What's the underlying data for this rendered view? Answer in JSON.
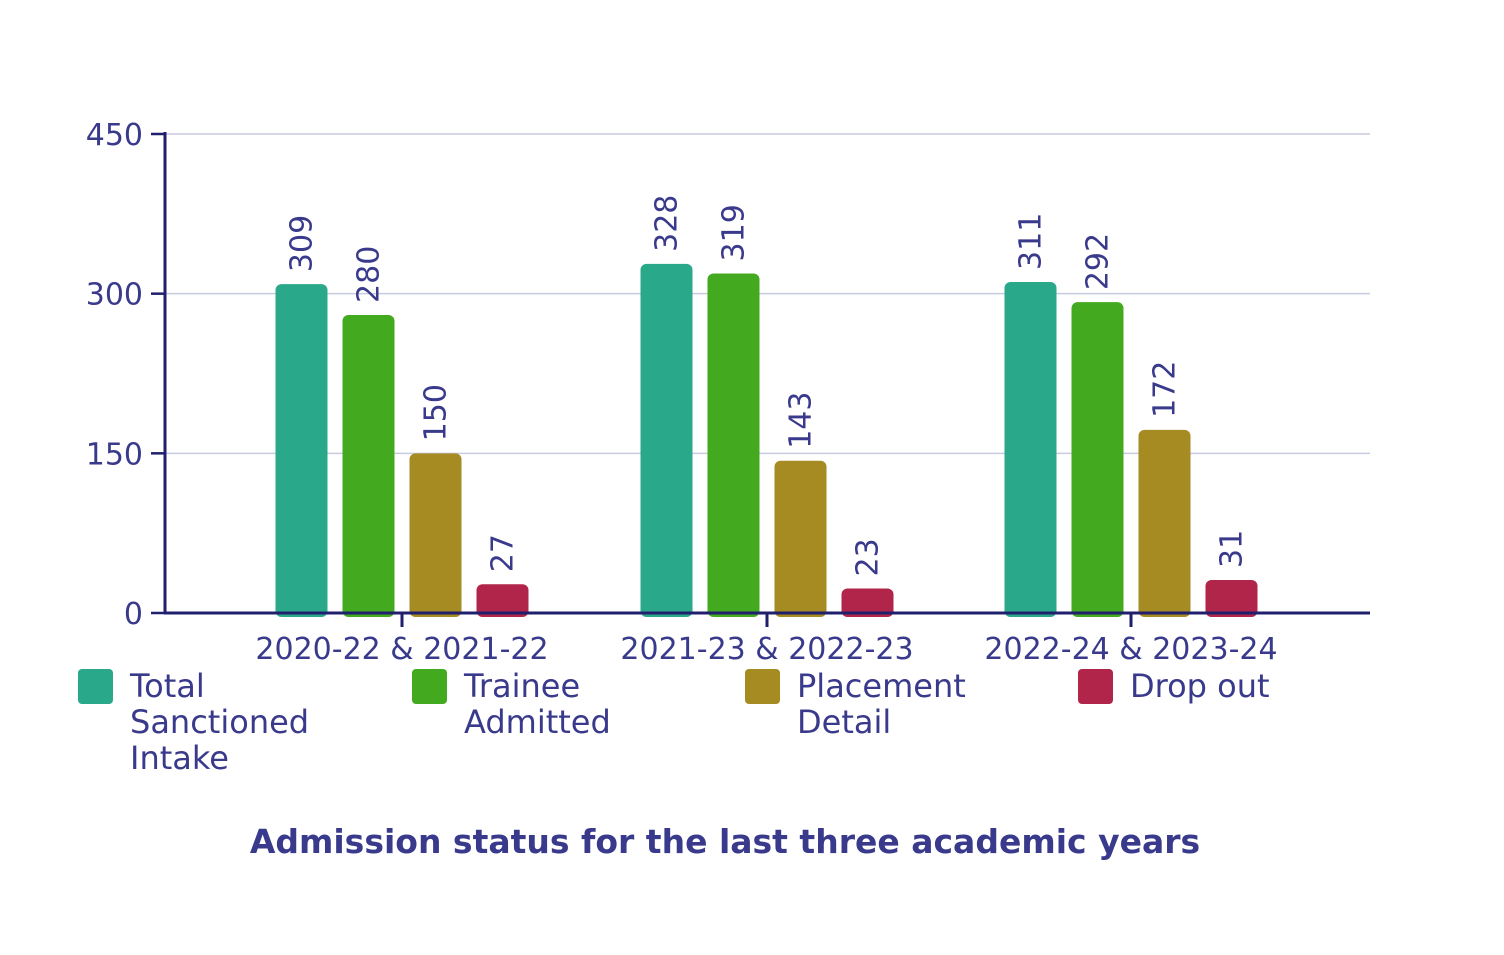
{
  "chart_data": {
    "type": "bar",
    "title": "Admission status for the last three academic years",
    "xlabel": "",
    "ylabel": "",
    "categories": [
      "2020-22 & 2021-22",
      "2021-23 & 2022-23",
      "2022-24 & 2023-24"
    ],
    "series": [
      {
        "name": "Total Sanctioned Intake",
        "color": "#2aa88a",
        "values": [
          309,
          328,
          311
        ]
      },
      {
        "name": "Trainee Admitted",
        "color": "#43a91f",
        "values": [
          280,
          319,
          292
        ]
      },
      {
        "name": "Placement Detail",
        "color": "#a68a22",
        "values": [
          150,
          143,
          172
        ]
      },
      {
        "name": "Drop out",
        "color": "#b1254a",
        "values": [
          27,
          23,
          31
        ]
      }
    ],
    "ylim": [
      0,
      450
    ],
    "yticks": [
      0,
      150,
      300,
      450
    ],
    "grid": true,
    "legend_position": "bottom",
    "colors": {
      "axis": "#1f1f6e",
      "grid": "#c8cce0",
      "text": "#3a3a8c"
    }
  }
}
